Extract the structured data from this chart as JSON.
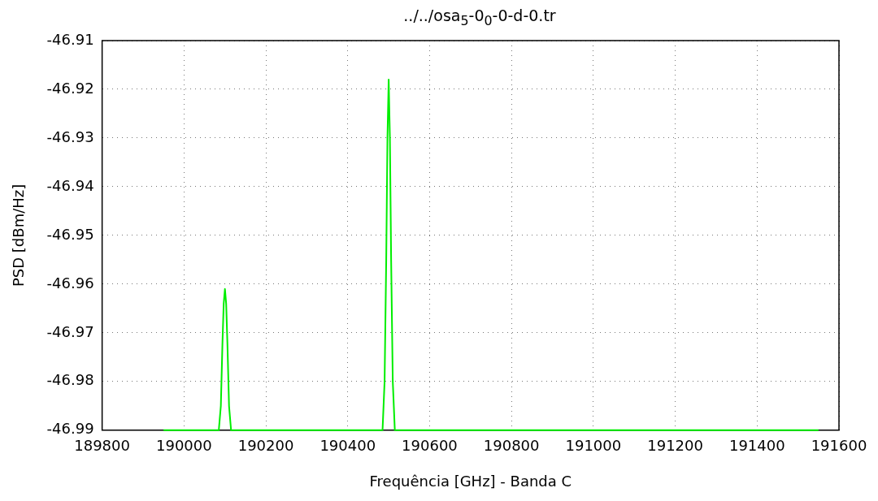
{
  "chart_data": {
    "type": "line",
    "title": "../../osa$_{5}$-0$_{0}$-0-d-0.tr",
    "xlabel": "Frequência [GHz] - Banda C",
    "ylabel": "PSD [dBm/Hz]",
    "series": [
      {
        "color": "#00ee00",
        "x": [
          189950,
          190085,
          190090,
          190094,
          190097,
          190100,
          190103,
          190106,
          190110,
          190115,
          190485,
          190490,
          190494,
          190497,
          190500,
          190503,
          190506,
          190510,
          190515,
          191550
        ],
        "values": [
          -46.99,
          -46.99,
          -46.985,
          -46.972,
          -46.964,
          -46.961,
          -46.964,
          -46.972,
          -46.985,
          -46.99,
          -46.99,
          -46.98,
          -46.955,
          -46.93,
          -46.918,
          -46.93,
          -46.955,
          -46.98,
          -46.99,
          -46.99
        ]
      }
    ],
    "xlim": [
      189800,
      191600
    ],
    "xticks": [
      189800,
      190000,
      190200,
      190400,
      190600,
      190800,
      191000,
      191200,
      191400,
      191600
    ],
    "ylim": [
      -46.99,
      -46.91
    ],
    "yticks": [
      -46.99,
      -46.98,
      -46.97,
      -46.96,
      -46.95,
      -46.94,
      -46.93,
      -46.92,
      -46.91
    ],
    "grid": true,
    "legend": false,
    "marker": "none",
    "line_style": "solid"
  }
}
